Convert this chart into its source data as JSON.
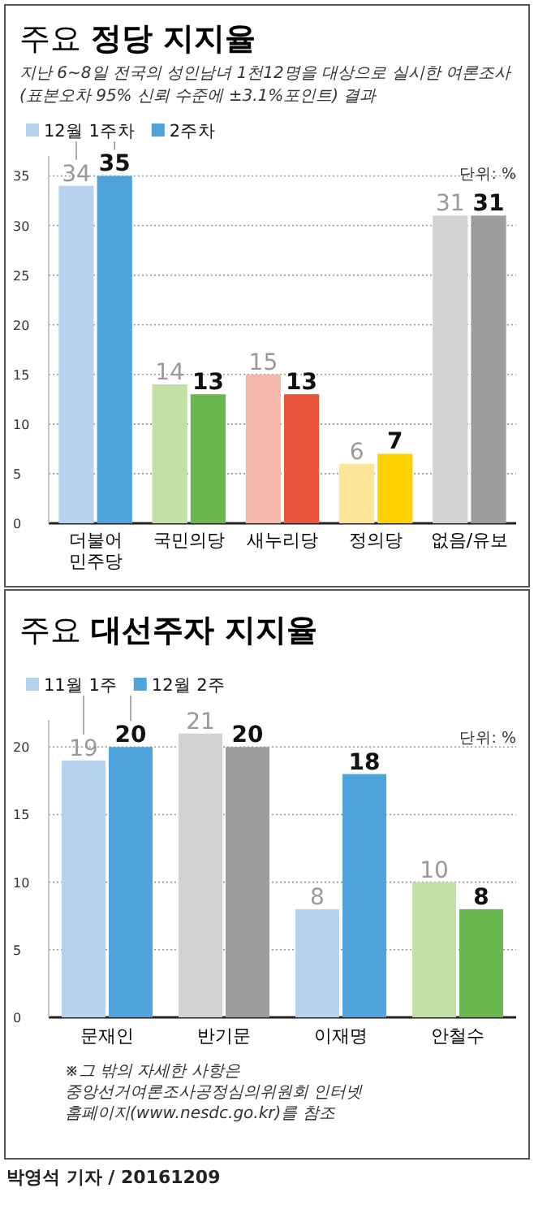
{
  "chart_data": [
    {
      "type": "bar",
      "title": "주요 **정당 지지율**",
      "subtitle": "지난 6~8일 전국의 성인남녀 1천12명을 대상으로 실시한 여론조사 (표본오차 95% 신뢰 수준에 ±3.1%포인트) 결과",
      "categories": [
        "더불어 민주당",
        "국민의당",
        "새누리당",
        "정의당",
        "없음/유보"
      ],
      "series": [
        {
          "name": "12월 1주차",
          "values": [
            34,
            14,
            15,
            6,
            31
          ],
          "colors": [
            "#b5d3ef",
            "#c2dfa8",
            "#f4b8ac",
            "#fde59a",
            "#d2d2d2"
          ]
        },
        {
          "name": "2주차",
          "values": [
            35,
            13,
            13,
            7,
            31
          ],
          "colors": [
            "#4fa3dd",
            "#6ab750",
            "#e9553a",
            "#fdd000",
            "#9d9d9d"
          ]
        }
      ],
      "legend": "top left",
      "ylim": [
        0,
        37
      ],
      "yticks": [
        0,
        5,
        10,
        15,
        20,
        25,
        30,
        35
      ],
      "grid": "y",
      "data_labels": true,
      "annotations": [
        "단위: %"
      ]
    },
    {
      "type": "bar",
      "title": "주요 **대선주자 지지율**",
      "categories": [
        "문재인",
        "반기문",
        "이재명",
        "안철수"
      ],
      "series": [
        {
          "name": "11월 1주",
          "values": [
            19,
            21,
            8,
            10
          ],
          "colors": [
            "#b5d3ef",
            "#d2d2d2",
            "#b5d3ef",
            "#c2dfa8"
          ]
        },
        {
          "name": "12월 2주",
          "values": [
            20,
            20,
            18,
            8
          ],
          "colors": [
            "#4fa3dd",
            "#9d9d9d",
            "#4fa3dd",
            "#6ab750"
          ]
        }
      ],
      "legend": "top left",
      "ylim": [
        0,
        22
      ],
      "yticks": [
        0,
        5,
        10,
        15,
        20
      ],
      "grid": "y",
      "data_labels": true,
      "annotations": [
        "단위: %",
        "※그 밖의 자세한 사항은 중앙선거여론조사공정심의위원회 인터넷 홈페이지(www.nesdc.go.kr)를 참조",
        "박영석 기자 / 20161209"
      ]
    }
  ]
}
